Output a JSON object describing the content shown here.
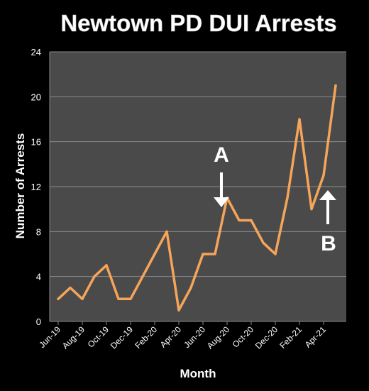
{
  "chart_data": {
    "type": "line",
    "title": "Newtown PD DUI Arrests",
    "xlabel": "Month",
    "ylabel": "Number of Arrests",
    "ylim": [
      0,
      24
    ],
    "yticks": [
      0,
      4,
      8,
      12,
      16,
      20,
      24
    ],
    "grid": true,
    "tick_labels": [
      "Jun-19",
      "Aug-19",
      "Oct-19",
      "Dec-19",
      "Feb-20",
      "Apr-20",
      "Jun-20",
      "Aug-20",
      "Oct-20",
      "Dec-20",
      "Feb-21",
      "Apr-21"
    ],
    "x": [
      "Jun-19",
      "Jul-19",
      "Aug-19",
      "Sep-19",
      "Oct-19",
      "Nov-19",
      "Dec-19",
      "Jan-20",
      "Feb-20",
      "Mar-20",
      "Apr-20",
      "May-20",
      "Jun-20",
      "Jul-20",
      "Aug-20",
      "Sep-20",
      "Oct-20",
      "Nov-20",
      "Dec-20",
      "Jan-21",
      "Feb-21",
      "Mar-21",
      "Apr-21",
      "May-21"
    ],
    "values": [
      2,
      3,
      2,
      4,
      5,
      2,
      2,
      4,
      6,
      8,
      1,
      3,
      6,
      6,
      11,
      9,
      9,
      7,
      6,
      11,
      18,
      10,
      13,
      21
    ],
    "line_color": "#f5a55a",
    "plot_background": "#4a4a4a",
    "annotations": [
      {
        "text": "A",
        "x": "Aug-20",
        "arrow": "down"
      },
      {
        "text": "B",
        "x": "Apr-21",
        "arrow": "up"
      }
    ]
  }
}
